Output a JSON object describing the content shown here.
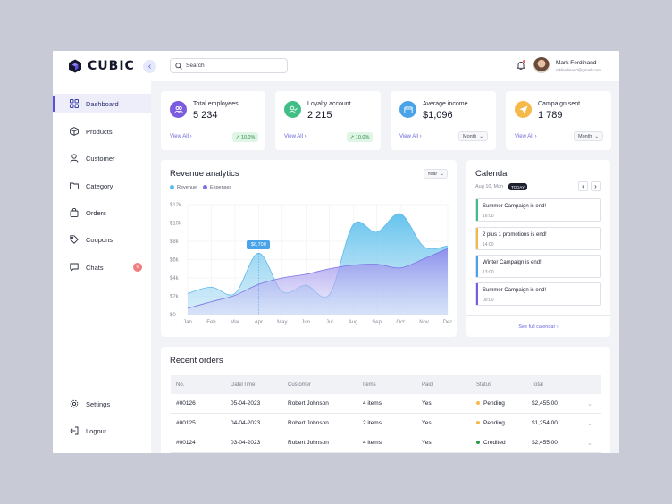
{
  "brand": {
    "name": "CUBIC"
  },
  "sidebar": {
    "items": [
      {
        "label": "Dashboard",
        "icon": "grid-icon"
      },
      {
        "label": "Products",
        "icon": "box-icon"
      },
      {
        "label": "Customer",
        "icon": "user-icon"
      },
      {
        "label": "Category",
        "icon": "folder-icon"
      },
      {
        "label": "Orders",
        "icon": "bag-icon"
      },
      {
        "label": "Coupons",
        "icon": "tag-icon"
      },
      {
        "label": "Chats",
        "icon": "chat-icon",
        "badge": "6"
      }
    ],
    "bottom": [
      {
        "label": "Settings",
        "icon": "gear-icon"
      },
      {
        "label": "Logout",
        "icon": "logout-icon"
      }
    ]
  },
  "search": {
    "placeholder": "Search"
  },
  "user": {
    "name": "Mark Ferdinand",
    "email": "mkferdinand@gmail.com"
  },
  "stats": [
    {
      "label": "Total employees",
      "value": "5 234",
      "link": "View All",
      "trend": "10.0%",
      "color": "#7b5be0"
    },
    {
      "label": "Loyalty account",
      "value": "2 215",
      "link": "View All",
      "trend": "10.0%",
      "color": "#3fbf86"
    },
    {
      "label": "Average income",
      "value": "$1,096",
      "link": "View All",
      "select": "Month",
      "color": "#4aa3e8"
    },
    {
      "label": "Campaign sent",
      "value": "1 789",
      "link": "View All",
      "select": "Month",
      "color": "#f5b94a"
    }
  ],
  "analytics": {
    "title": "Revenue analytics",
    "period": "Year",
    "tooltip": "$6,700"
  },
  "chart_data": {
    "type": "area",
    "title": "Revenue analytics",
    "categories": [
      "Jan",
      "Feb",
      "Mar",
      "Apr",
      "May",
      "Jun",
      "Jul",
      "Aug",
      "Sep",
      "Oct",
      "Nov",
      "Dec"
    ],
    "y_ticks": [
      "$0",
      "$2k",
      "$4k",
      "$6k",
      "$8k",
      "$10k",
      "$12k"
    ],
    "ylim": [
      0,
      12000
    ],
    "series": [
      {
        "name": "Revenue",
        "color": "#5fb8ea",
        "values": [
          2300,
          3000,
          2300,
          6700,
          2500,
          3200,
          2200,
          9800,
          9000,
          11000,
          7400,
          7500
        ]
      },
      {
        "name": "Expenses",
        "color": "#7b73e3",
        "values": [
          700,
          1400,
          2100,
          3300,
          4000,
          4400,
          5000,
          5400,
          5500,
          5100,
          6100,
          7200
        ]
      }
    ],
    "grid": true,
    "legend": "top-left"
  },
  "calendar": {
    "title": "Calendar",
    "date": "Aug 10, Mon",
    "today_label": "TODAY",
    "events": [
      {
        "title": "Summer Campaign is end!",
        "time": "16:00",
        "color": "#3fbf86"
      },
      {
        "title": "2 plus 1 promotions is end!",
        "time": "14:00",
        "color": "#f5b94a"
      },
      {
        "title": "Winter Campaign is end!",
        "time": "13:00",
        "color": "#4aa3e8"
      },
      {
        "title": "Summer Campaign is end!",
        "time": "09:00",
        "color": "#7b5be0"
      }
    ],
    "footer_link": "See full calendar"
  },
  "orders": {
    "title": "Recent orders",
    "columns": [
      "No.",
      "Date/Time",
      "Customer",
      "Items",
      "Paid",
      "Status",
      "Total"
    ],
    "rows": [
      {
        "no": "#00126",
        "date": "05-04-2023",
        "customer": "Robert Johnson",
        "items": "4 items",
        "paid": "Yes",
        "status": "Pending",
        "status_color": "#f5b94a",
        "total": "$2,455.00"
      },
      {
        "no": "#00125",
        "date": "04-04-2023",
        "customer": "Robert Johnson",
        "items": "2 items",
        "paid": "Yes",
        "status": "Pending",
        "status_color": "#f5b94a",
        "total": "$1,254.00"
      },
      {
        "no": "#00124",
        "date": "03-04-2023",
        "customer": "Robert Johnson",
        "items": "4 items",
        "paid": "Yes",
        "status": "Credited",
        "status_color": "#2a9a4a",
        "total": "$2,455.00"
      }
    ]
  }
}
